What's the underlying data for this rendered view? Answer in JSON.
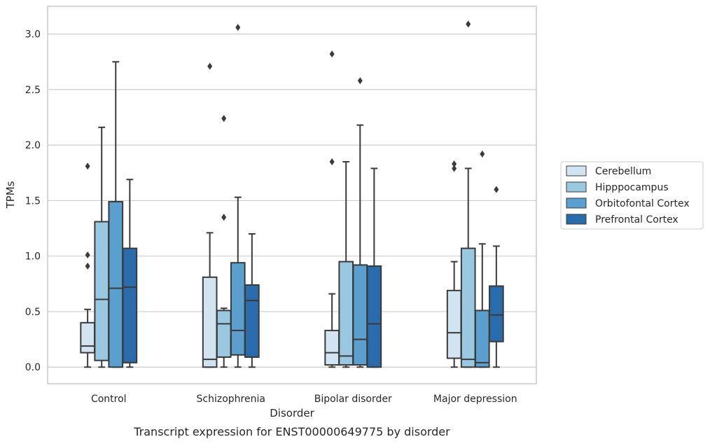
{
  "chart_data": {
    "type": "box",
    "caption": "Transcript expression for ENST00000649775 by disorder",
    "xlabel": "Disorder",
    "ylabel": "TPMs",
    "ylim": [
      -0.15,
      3.25
    ],
    "yticks": [
      0.0,
      0.5,
      1.0,
      1.5,
      2.0,
      2.5,
      3.0
    ],
    "ytick_labels": [
      "0.0",
      "0.5",
      "1.0",
      "1.5",
      "2.0",
      "2.5",
      "3.0"
    ],
    "grid": "horizontal",
    "legend_position": "right",
    "categories": [
      "Control",
      "Schizophrenia",
      "Bipolar disorder",
      "Major depression"
    ],
    "series": [
      {
        "name": "Cerebellum",
        "color": "#d2e3f2",
        "boxes": [
          {
            "whislo": 0.0,
            "q1": 0.13,
            "med": 0.19,
            "q3": 0.4,
            "whishi": 0.52,
            "fliers": [
              0.91,
              1.01,
              1.81
            ]
          },
          {
            "whislo": 0.0,
            "q1": 0.0,
            "med": 0.07,
            "q3": 0.81,
            "whishi": 1.21,
            "fliers": [
              2.71
            ]
          },
          {
            "whislo": 0.0,
            "q1": 0.02,
            "med": 0.13,
            "q3": 0.33,
            "whishi": 0.66,
            "fliers": [
              1.85,
              2.82
            ]
          },
          {
            "whislo": 0.0,
            "q1": 0.08,
            "med": 0.31,
            "q3": 0.69,
            "whishi": 0.95,
            "fliers": [
              1.79,
              1.83
            ]
          }
        ]
      },
      {
        "name": "Hipppocampus",
        "color": "#9ac8e0",
        "boxes": [
          {
            "whislo": 0.0,
            "q1": 0.06,
            "med": 0.61,
            "q3": 1.31,
            "whishi": 2.16,
            "fliers": []
          },
          {
            "whislo": 0.0,
            "q1": 0.09,
            "med": 0.39,
            "q3": 0.51,
            "whishi": 0.53,
            "fliers": [
              1.35,
              2.24
            ]
          },
          {
            "whislo": 0.0,
            "q1": 0.02,
            "med": 0.1,
            "q3": 0.95,
            "whishi": 1.85,
            "fliers": []
          },
          {
            "whislo": 0.0,
            "q1": 0.0,
            "med": 0.07,
            "q3": 1.07,
            "whishi": 1.79,
            "fliers": [
              3.09
            ]
          }
        ]
      },
      {
        "name": "Orbitofontal Cortex",
        "color": "#5a9fcd",
        "boxes": [
          {
            "whislo": 0.0,
            "q1": 0.0,
            "med": 0.71,
            "q3": 1.49,
            "whishi": 2.75,
            "fliers": []
          },
          {
            "whislo": 0.0,
            "q1": 0.11,
            "med": 0.33,
            "q3": 0.94,
            "whishi": 1.53,
            "fliers": [
              3.06
            ]
          },
          {
            "whislo": 0.0,
            "q1": 0.02,
            "med": 0.25,
            "q3": 0.92,
            "whishi": 2.18,
            "fliers": [
              2.58
            ]
          },
          {
            "whislo": 0.0,
            "q1": 0.0,
            "med": 0.04,
            "q3": 0.51,
            "whishi": 1.11,
            "fliers": [
              1.92
            ]
          }
        ]
      },
      {
        "name": "Prefrontal Cortex",
        "color": "#2a6bab",
        "boxes": [
          {
            "whislo": 0.0,
            "q1": 0.04,
            "med": 0.72,
            "q3": 1.07,
            "whishi": 1.69,
            "fliers": []
          },
          {
            "whislo": 0.0,
            "q1": 0.09,
            "med": 0.6,
            "q3": 0.74,
            "whishi": 1.2,
            "fliers": []
          },
          {
            "whislo": 0.0,
            "q1": 0.0,
            "med": 0.39,
            "q3": 0.91,
            "whishi": 1.79,
            "fliers": []
          },
          {
            "whislo": 0.0,
            "q1": 0.23,
            "med": 0.47,
            "q3": 0.73,
            "whishi": 1.09,
            "fliers": [
              1.6
            ]
          }
        ]
      }
    ]
  },
  "style": {
    "line_color": "#3a3a3a",
    "grid_color": "#cccccc",
    "frame_color": "#c8c8c8"
  }
}
